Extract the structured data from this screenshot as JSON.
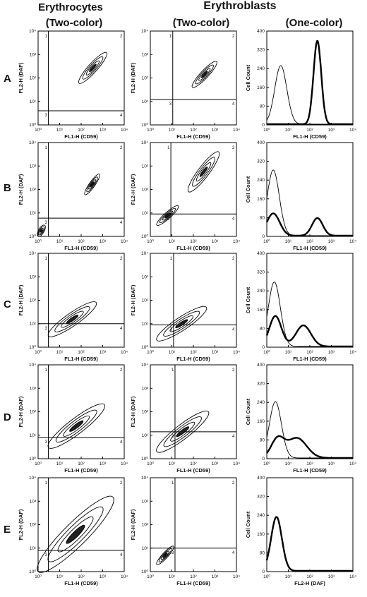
{
  "headers": {
    "erythrocytes": "Erythrocytes",
    "erythroblasts": "Erythroblasts",
    "two_color_a": "(Two-color)",
    "two_color_b": "(Two-color)",
    "one_color": "(One-color)"
  },
  "row_labels": [
    "A",
    "B",
    "C",
    "D",
    "E"
  ],
  "axis_text": {
    "x_cd59": "FL1-H (CD59)",
    "y_daf": "FL2-H (DAF)",
    "x_daf": "FL2-H  (DAF)",
    "y_count": "Cell Count"
  },
  "log_ticks": [
    "10⁰",
    "10¹",
    "10²",
    "10³",
    "10⁴"
  ],
  "chart_data": {
    "type": "contour",
    "x_scale": "log",
    "y_scale": "log",
    "xlim": [
      1,
      10000
    ],
    "ylim": [
      1,
      10000
    ],
    "hist_ylim": [
      0,
      400
    ],
    "hist_yticks": [
      0,
      80,
      160,
      240,
      320,
      400
    ],
    "quadrant_labels": [
      "1",
      "2",
      "3",
      "4"
    ],
    "rows": [
      {
        "label": "A",
        "erythrocytes": {
          "gate_x": 3,
          "gate_y": 4,
          "quadrant_labels": [
            "1",
            "2",
            "3",
            "4"
          ],
          "populations": [
            {
              "x_range": [
                80,
                1500
              ],
              "y_range": [
                60,
                1200
              ]
            }
          ]
        },
        "erythroblasts": {
          "gate_x": 11,
          "gate_y": 12,
          "quadrant_labels": [
            "1",
            "2",
            "3",
            "4"
          ],
          "populations": [
            {
              "x_range": [
                90,
                1200
              ],
              "y_range": [
                40,
                500
              ]
            }
          ]
        },
        "histogram": {
          "xlabel_key": "x_cd59",
          "curves": [
            {
              "style": "thin",
              "peaks": [
                {
                  "log_x": 0.65,
                  "sigma": 0.28,
                  "height": 250
                }
              ]
            },
            {
              "style": "thick",
              "peaks": [
                {
                  "log_x": 2.35,
                  "sigma": 0.18,
                  "height": 355
                }
              ]
            }
          ]
        }
      },
      {
        "label": "B",
        "erythrocytes": {
          "gate_x": 3,
          "gate_y": 6,
          "quadrant_labels": [
            "1",
            "2",
            "3",
            "4"
          ],
          "populations": [
            {
              "x_range": [
                150,
                700
              ],
              "y_range": [
                60,
                450
              ]
            },
            {
              "x_range": [
                1,
                2
              ],
              "y_range": [
                1,
                3
              ]
            }
          ]
        },
        "erythroblasts": {
          "gate_x": 9,
          "gate_y": 9,
          "quadrant_labels": [
            "1",
            "2",
            "3",
            "4"
          ],
          "populations": [
            {
              "x_range": [
                60,
                1500
              ],
              "y_range": [
                80,
                4000
              ]
            },
            {
              "x_range": [
                2,
                20
              ],
              "y_range": [
                3,
                20
              ]
            }
          ]
        },
        "histogram": {
          "xlabel_key": "x_cd59",
          "curves": [
            {
              "style": "thin",
              "peaks": [
                {
                  "log_x": 0.3,
                  "sigma": 0.28,
                  "height": 280
                }
              ]
            },
            {
              "style": "thick",
              "peaks": [
                {
                  "log_x": 0.3,
                  "sigma": 0.3,
                  "height": 95
                },
                {
                  "log_x": 2.35,
                  "sigma": 0.25,
                  "height": 75
                }
              ]
            }
          ]
        }
      },
      {
        "label": "C",
        "erythrocytes": {
          "gate_x": 3,
          "gate_y": 10,
          "quadrant_labels": [
            "1",
            "2",
            "3",
            "4"
          ],
          "populations": [
            {
              "x_range": [
                3,
                500
              ],
              "y_range": [
                3,
                80
              ]
            }
          ]
        },
        "erythroblasts": {
          "gate_x": 12,
          "gate_y": 9,
          "quadrant_labels": [
            "1",
            "2",
            "3",
            "4"
          ],
          "populations": [
            {
              "x_range": [
                2,
                400
              ],
              "y_range": [
                2,
                50
              ]
            }
          ]
        },
        "histogram": {
          "xlabel_key": "x_cd59",
          "curves": [
            {
              "style": "thin",
              "peaks": [
                {
                  "log_x": 0.35,
                  "sigma": 0.28,
                  "height": 275
                }
              ]
            },
            {
              "style": "thick",
              "peaks": [
                {
                  "log_x": 0.4,
                  "sigma": 0.28,
                  "height": 130
                },
                {
                  "log_x": 1.7,
                  "sigma": 0.35,
                  "height": 90
                }
              ]
            }
          ]
        }
      },
      {
        "label": "D",
        "erythrocytes": {
          "gate_x": 3,
          "gate_y": 8,
          "quadrant_labels": [
            "1",
            "2",
            "3",
            "4"
          ],
          "populations": [
            {
              "x_range": [
                3,
                1200
              ],
              "y_range": [
                3,
                200
              ]
            }
          ]
        },
        "erythroblasts": {
          "gate_x": 14,
          "gate_y": 14,
          "quadrant_labels": [
            "1",
            "2",
            "3",
            "4"
          ],
          "populations": [
            {
              "x_range": [
                2,
                500
              ],
              "y_range": [
                2,
                100
              ]
            }
          ]
        },
        "histogram": {
          "xlabel_key": "x_cd59",
          "curves": [
            {
              "style": "thin",
              "peaks": [
                {
                  "log_x": 0.4,
                  "sigma": 0.28,
                  "height": 240
                }
              ]
            },
            {
              "style": "thick",
              "peaks": [
                {
                  "log_x": 0.5,
                  "sigma": 0.3,
                  "height": 80
                },
                {
                  "log_x": 1.4,
                  "sigma": 0.45,
                  "height": 85
                }
              ]
            }
          ]
        }
      },
      {
        "label": "E",
        "erythrocytes": {
          "gate_x": 3,
          "gate_y": 8,
          "quadrant_labels": [
            "1",
            "2",
            "3",
            "4"
          ],
          "populations": [
            {
              "x_range": [
                1,
                3000
              ],
              "y_range": [
                1,
                1500
              ]
            }
          ]
        },
        "erythroblasts": {
          "gate_x": 14,
          "gate_y": 10,
          "quadrant_labels": [
            "1",
            "2",
            "3",
            "4"
          ],
          "populations": [
            {
              "x_range": [
                2,
                12
              ],
              "y_range": [
                2,
                12
              ]
            }
          ]
        },
        "histogram": {
          "xlabel_key": "x_daf",
          "curves": [
            {
              "style": "thick",
              "peaks": [
                {
                  "log_x": 0.45,
                  "sigma": 0.25,
                  "height": 230
                }
              ]
            }
          ]
        }
      }
    ]
  }
}
